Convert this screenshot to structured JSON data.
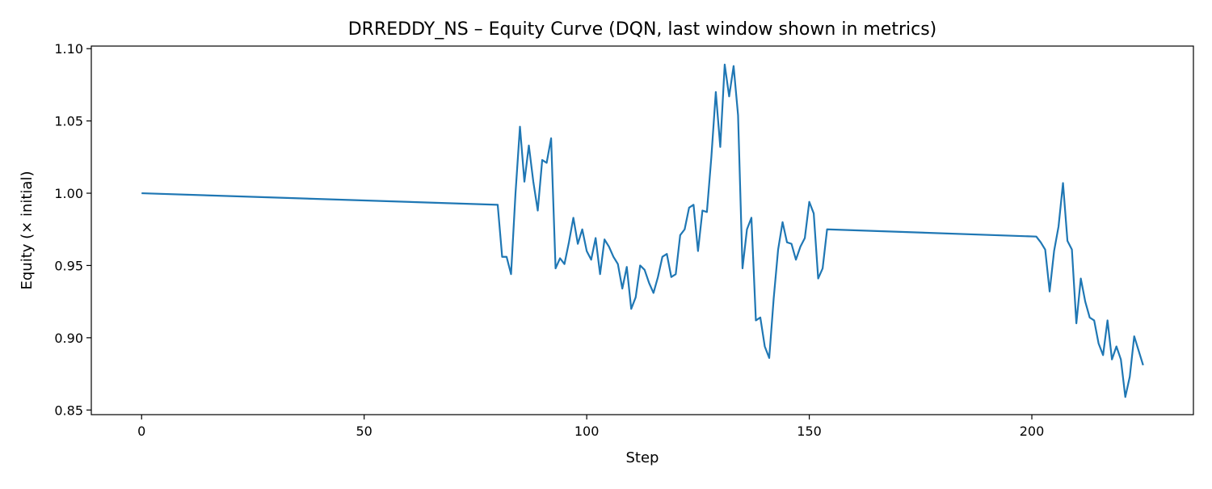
{
  "chart_data": {
    "type": "line",
    "title": "DRREDDY_NS – Equity Curve (DQN, last window shown in metrics)",
    "xlabel": "Step",
    "ylabel": "Equity (× initial)",
    "xlim": [
      -11.3,
      236.3
    ],
    "ylim": [
      0.8468,
      1.1018
    ],
    "xticks": [
      0,
      50,
      100,
      150,
      200
    ],
    "xtick_labels": [
      "0",
      "50",
      "100",
      "150",
      "200"
    ],
    "yticks": [
      0.85,
      0.9,
      0.95,
      1.0,
      1.05,
      1.1
    ],
    "ytick_labels": [
      "0.85",
      "0.90",
      "0.95",
      "1.00",
      "1.05",
      "1.10"
    ],
    "grid": false,
    "legend": "none",
    "series": [
      {
        "color": "#1f77b4",
        "x": [
          0,
          80,
          81,
          82,
          83,
          84,
          85,
          86,
          87,
          88,
          89,
          90,
          91,
          92,
          93,
          94,
          95,
          96,
          97,
          98,
          99,
          100,
          101,
          102,
          103,
          104,
          105,
          106,
          107,
          108,
          109,
          110,
          111,
          112,
          113,
          114,
          115,
          116,
          117,
          118,
          119,
          120,
          121,
          122,
          123,
          124,
          125,
          126,
          127,
          128,
          129,
          130,
          131,
          132,
          133,
          134,
          135,
          136,
          137,
          138,
          139,
          140,
          141,
          142,
          143,
          144,
          145,
          146,
          147,
          148,
          149,
          150,
          151,
          152,
          153,
          154,
          201,
          202,
          203,
          204,
          205,
          206,
          207,
          208,
          209,
          210,
          211,
          212,
          213,
          214,
          215,
          216,
          217,
          218,
          219,
          220,
          221,
          222,
          223,
          224,
          225
        ],
        "y": [
          1.0,
          0.992,
          0.956,
          0.956,
          0.944,
          1.0,
          1.046,
          1.008,
          1.033,
          1.008,
          0.988,
          1.023,
          1.021,
          1.038,
          0.948,
          0.955,
          0.951,
          0.966,
          0.983,
          0.965,
          0.975,
          0.96,
          0.954,
          0.969,
          0.944,
          0.968,
          0.963,
          0.956,
          0.951,
          0.934,
          0.949,
          0.92,
          0.928,
          0.95,
          0.947,
          0.938,
          0.931,
          0.942,
          0.956,
          0.958,
          0.942,
          0.944,
          0.971,
          0.975,
          0.99,
          0.992,
          0.96,
          0.988,
          0.987,
          1.025,
          1.07,
          1.032,
          1.089,
          1.067,
          1.088,
          1.054,
          0.948,
          0.975,
          0.983,
          0.912,
          0.914,
          0.894,
          0.886,
          0.927,
          0.961,
          0.98,
          0.966,
          0.965,
          0.954,
          0.963,
          0.969,
          0.994,
          0.986,
          0.941,
          0.948,
          0.975,
          0.97,
          0.966,
          0.961,
          0.932,
          0.96,
          0.977,
          1.007,
          0.967,
          0.961,
          0.91,
          0.941,
          0.925,
          0.914,
          0.912,
          0.896,
          0.888,
          0.912,
          0.885,
          0.894,
          0.885,
          0.859,
          0.873,
          0.901,
          0.891,
          0.881
        ]
      }
    ]
  }
}
